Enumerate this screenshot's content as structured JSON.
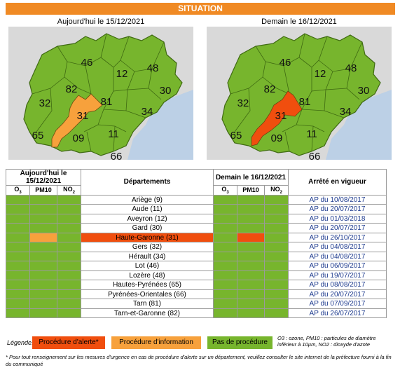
{
  "banner": "SITUATION",
  "panels": [
    {
      "title": "Aujourd'hui le 15/12/2021",
      "highlight": "orange"
    },
    {
      "title": "Demain le 16/12/2021",
      "highlight": "red"
    }
  ],
  "map_labels": [
    "46",
    "48",
    "12",
    "82",
    "30",
    "32",
    "81",
    "34",
    "31",
    "65",
    "09",
    "11",
    "66"
  ],
  "colors": {
    "green": "#77b52d",
    "orange": "#f7a13c",
    "red": "#f04e0e",
    "sea": "#bcd0e6",
    "land": "#d9d9d9"
  },
  "table": {
    "today_header": "Aujourd'hui le 15/12/2021",
    "dept_header": "Départements",
    "tomorrow_header": "Demain le 16/12/2021",
    "arrete_header": "Arrêté en vigueur",
    "pollutants": [
      "O3",
      "PM10",
      "NO2"
    ],
    "rows": [
      {
        "dept": "Ariège (9)",
        "ap": "AP du 10/08/2017",
        "today": [
          "green",
          "green",
          "green"
        ],
        "tomorrow": [
          "green",
          "green",
          "green"
        ],
        "dept_color": ""
      },
      {
        "dept": "Aude (11)",
        "ap": "AP du 20/07/2017",
        "today": [
          "green",
          "green",
          "green"
        ],
        "tomorrow": [
          "green",
          "green",
          "green"
        ],
        "dept_color": ""
      },
      {
        "dept": "Aveyron (12)",
        "ap": "AP du 01/03/2018",
        "today": [
          "green",
          "green",
          "green"
        ],
        "tomorrow": [
          "green",
          "green",
          "green"
        ],
        "dept_color": ""
      },
      {
        "dept": "Gard (30)",
        "ap": "AP du 20/07/2017",
        "today": [
          "green",
          "green",
          "green"
        ],
        "tomorrow": [
          "green",
          "green",
          "green"
        ],
        "dept_color": ""
      },
      {
        "dept": "Haute-Garonne (31)",
        "ap": "AP du 26/10/2017",
        "today": [
          "green",
          "orange",
          "green"
        ],
        "tomorrow": [
          "green",
          "red",
          "green"
        ],
        "dept_color": "red"
      },
      {
        "dept": "Gers (32)",
        "ap": "AP du 04/08/2017",
        "today": [
          "green",
          "green",
          "green"
        ],
        "tomorrow": [
          "green",
          "green",
          "green"
        ],
        "dept_color": ""
      },
      {
        "dept": "Hérault (34)",
        "ap": "AP du 04/08/2017",
        "today": [
          "green",
          "green",
          "green"
        ],
        "tomorrow": [
          "green",
          "green",
          "green"
        ],
        "dept_color": ""
      },
      {
        "dept": "Lot (46)",
        "ap": "AP du 06/09/2017",
        "today": [
          "green",
          "green",
          "green"
        ],
        "tomorrow": [
          "green",
          "green",
          "green"
        ],
        "dept_color": ""
      },
      {
        "dept": "Lozère (48)",
        "ap": "AP du 19/07/2017",
        "today": [
          "green",
          "green",
          "green"
        ],
        "tomorrow": [
          "green",
          "green",
          "green"
        ],
        "dept_color": ""
      },
      {
        "dept": "Hautes-Pyrénées (65)",
        "ap": "AP du 08/08/2017",
        "today": [
          "green",
          "green",
          "green"
        ],
        "tomorrow": [
          "green",
          "green",
          "green"
        ],
        "dept_color": ""
      },
      {
        "dept": "Pyrénées-Orientales (66)",
        "ap": "AP du 20/07/2017",
        "today": [
          "green",
          "green",
          "green"
        ],
        "tomorrow": [
          "green",
          "green",
          "green"
        ],
        "dept_color": ""
      },
      {
        "dept": "Tarn (81)",
        "ap": "AP du 07/09/2017",
        "today": [
          "green",
          "green",
          "green"
        ],
        "tomorrow": [
          "green",
          "green",
          "green"
        ],
        "dept_color": ""
      },
      {
        "dept": "Tarn-et-Garonne (82)",
        "ap": "AP du 26/07/2017",
        "today": [
          "green",
          "green",
          "green"
        ],
        "tomorrow": [
          "green",
          "green",
          "green"
        ],
        "dept_color": ""
      }
    ]
  },
  "legend": {
    "label": "Légende:",
    "alert": "Procédure d'alerte*",
    "info": "Procédure d'information",
    "none": "Pas de procédure",
    "note": "O3 : ozone, PM10 : particules de diamètre inférieur à 10µm, NO2 : dioxyde d'azote"
  },
  "footnote": "* Pour tout renseignement sur les mesures d'urgence en cas de procédure d'alerte sur un département, veuillez consulter le site internet de la préfecture fourni à la fin du communiqué"
}
